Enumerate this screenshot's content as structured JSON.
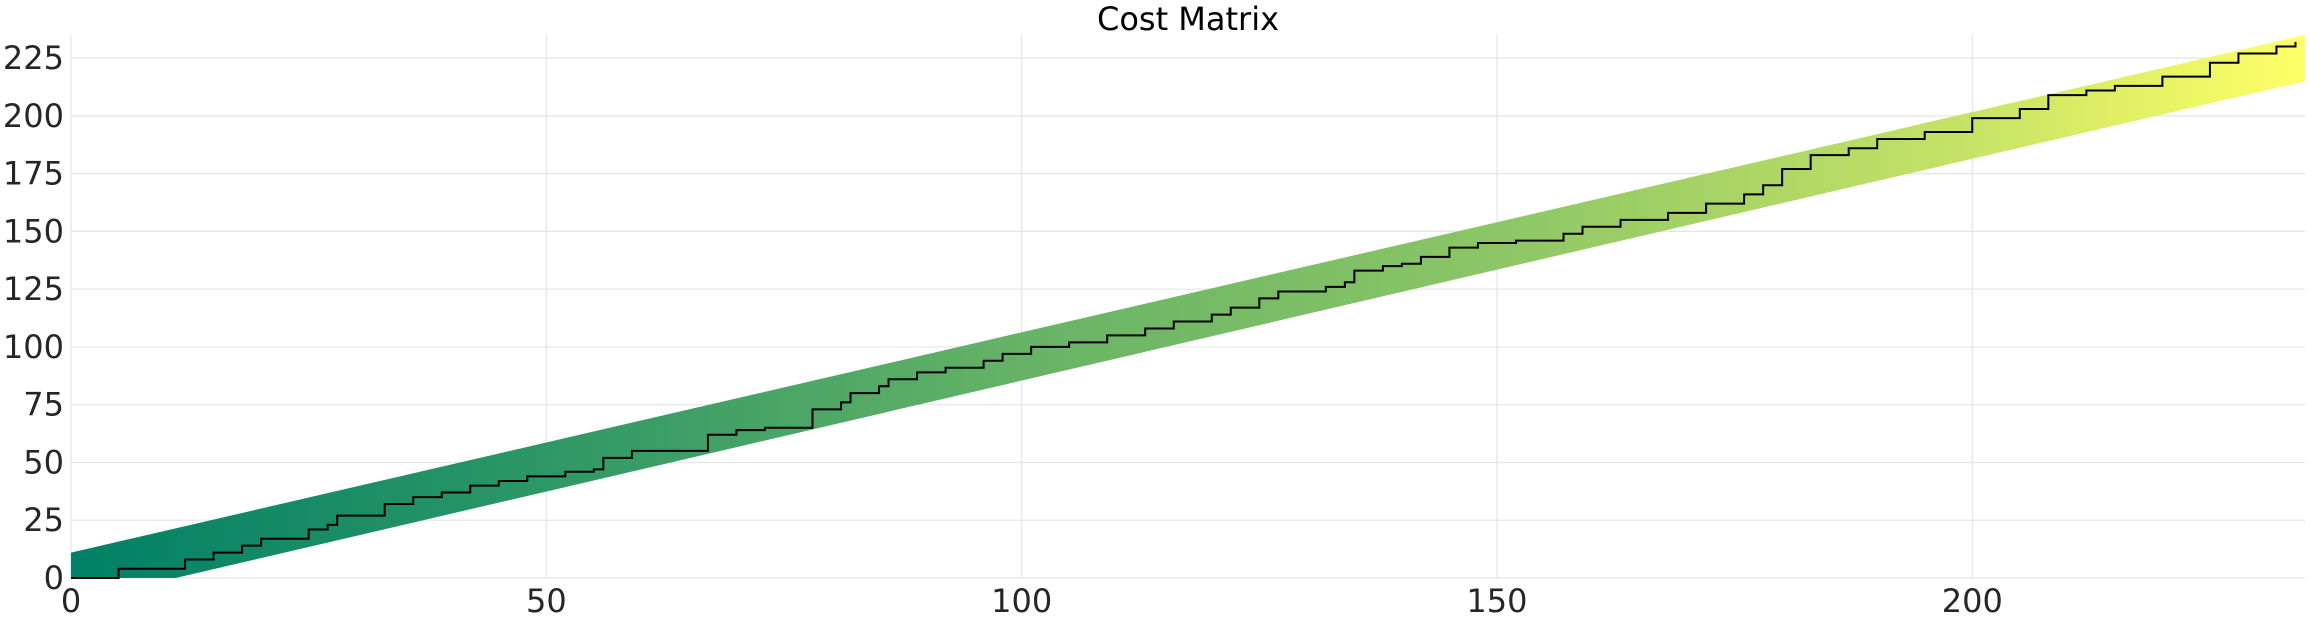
{
  "chart_data": {
    "type": "heatmap",
    "title": "Cost Matrix",
    "xlabel": "",
    "ylabel": "",
    "xlim": [
      0,
      235
    ],
    "ylim": [
      0,
      235
    ],
    "x_ticks": [
      0,
      50,
      100,
      150,
      200
    ],
    "y_ticks": [
      0,
      25,
      50,
      75,
      100,
      125,
      150,
      175,
      200,
      225
    ],
    "grid": true,
    "colormap": "summer",
    "colors": {
      "low": "#008066",
      "high": "#ffff66",
      "path": "#000000"
    },
    "band": {
      "description_rows": "diagonal band of computed cost cells around the warping path",
      "lower_edge": [
        [
          0,
          0
        ],
        [
          11,
          0
        ],
        [
          235,
          215
        ]
      ],
      "upper_edge": [
        [
          0,
          11
        ],
        [
          235,
          235
        ]
      ],
      "color_stops": [
        [
          0,
          0.0
        ],
        [
          50,
          0.18
        ],
        [
          100,
          0.4
        ],
        [
          150,
          0.55
        ],
        [
          200,
          0.78
        ],
        [
          235,
          1.0
        ]
      ]
    },
    "path": {
      "name": "",
      "points": [
        [
          0,
          0
        ],
        [
          5,
          4
        ],
        [
          8,
          4
        ],
        [
          12,
          8
        ],
        [
          14,
          8
        ],
        [
          15,
          11
        ],
        [
          18,
          14
        ],
        [
          20,
          17
        ],
        [
          25,
          21
        ],
        [
          27,
          23
        ],
        [
          28,
          27
        ],
        [
          33,
          32
        ],
        [
          36,
          35
        ],
        [
          39,
          37
        ],
        [
          42,
          40
        ],
        [
          45,
          42
        ],
        [
          48,
          44
        ],
        [
          52,
          46
        ],
        [
          55,
          47
        ],
        [
          56,
          52
        ],
        [
          59,
          55
        ],
        [
          62,
          55
        ],
        [
          65,
          55
        ],
        [
          67,
          58
        ],
        [
          67,
          62
        ],
        [
          70,
          64
        ],
        [
          73,
          65
        ],
        [
          76,
          65
        ],
        [
          78,
          68
        ],
        [
          78,
          73
        ],
        [
          81,
          76
        ],
        [
          82,
          80
        ],
        [
          85,
          83
        ],
        [
          86,
          86
        ],
        [
          89,
          89
        ],
        [
          92,
          91
        ],
        [
          96,
          94
        ],
        [
          98,
          97
        ],
        [
          101,
          100
        ],
        [
          105,
          102
        ],
        [
          109,
          105
        ],
        [
          113,
          108
        ],
        [
          116,
          111
        ],
        [
          120,
          114
        ],
        [
          122,
          117
        ],
        [
          125,
          121
        ],
        [
          127,
          124
        ],
        [
          132,
          126
        ],
        [
          134,
          128
        ],
        [
          135,
          133
        ],
        [
          138,
          135
        ],
        [
          140,
          136
        ],
        [
          142,
          139
        ],
        [
          145,
          143
        ],
        [
          148,
          145
        ],
        [
          152,
          146
        ],
        [
          157,
          149
        ],
        [
          159,
          152
        ],
        [
          163,
          155
        ],
        [
          168,
          158
        ],
        [
          172,
          162
        ],
        [
          176,
          166
        ],
        [
          178,
          170
        ],
        [
          180,
          177
        ],
        [
          183,
          183
        ],
        [
          187,
          186
        ],
        [
          190,
          190
        ],
        [
          195,
          193
        ],
        [
          200,
          199
        ],
        [
          205,
          203
        ],
        [
          208,
          209
        ],
        [
          212,
          211
        ],
        [
          215,
          213
        ],
        [
          220,
          217
        ],
        [
          225,
          223
        ],
        [
          228,
          227
        ],
        [
          232,
          230
        ],
        [
          234,
          232
        ]
      ]
    }
  }
}
